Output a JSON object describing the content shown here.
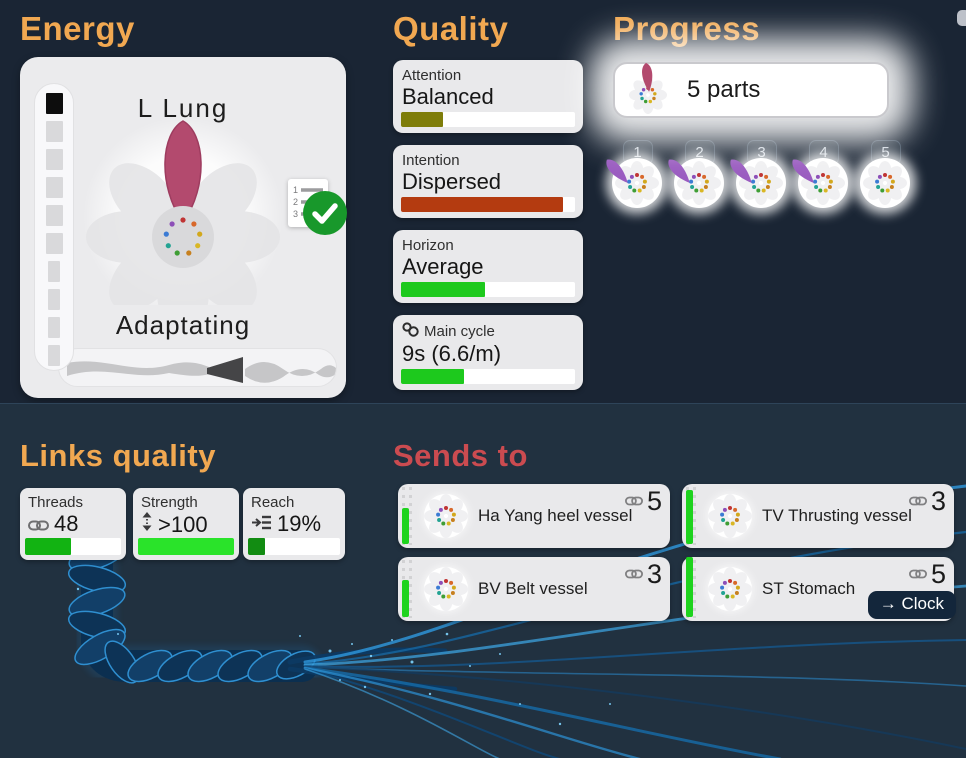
{
  "colors": {
    "bg_top": "#1a2534",
    "bg_bottom": "#213140",
    "accent_orange": "#f1a851",
    "accent_red": "#cb4b50",
    "card_gray": "#e9e9eb",
    "petal_pink": "#b34a6e",
    "petal_purple": "#9a5cc0",
    "bar_green": "#1dc91d"
  },
  "icons": {
    "threads": "chain-link-icon",
    "strength": "double-arrow-vertical-icon",
    "reach": "indent-lines-icon",
    "main_cycle": "loop-cycle-icon",
    "checklist": "numbered-list-icon",
    "done": "green-checkmark-icon",
    "links": "chain-link-icon",
    "clock_arrow": "arrow-right-icon"
  },
  "energy": {
    "title": "Energy",
    "organ": "L Lung",
    "state": "Adaptating",
    "gauge": {
      "segments": 10,
      "active_segment": 1
    }
  },
  "quality": {
    "title": "Quality",
    "stats": [
      {
        "label": "Attention",
        "value": "Balanced",
        "pct": 24,
        "color": "#7e7d0a"
      },
      {
        "label": "Intention",
        "value": "Dispersed",
        "pct": 93,
        "color": "#b43b10"
      },
      {
        "label": "Horizon",
        "value": "Average",
        "pct": 48,
        "color": "#1dc91d"
      },
      {
        "label": "Main cycle",
        "value": "9s (6.6/m)",
        "pct": 36,
        "color": "#1dc91d"
      }
    ]
  },
  "progress": {
    "title": "Progress",
    "summary": "5 parts",
    "parts": [
      {
        "label": "1",
        "state": "done"
      },
      {
        "label": "2",
        "state": "done"
      },
      {
        "label": "3",
        "state": "done"
      },
      {
        "label": "4",
        "state": "done"
      },
      {
        "label": "5",
        "state": "pending"
      }
    ]
  },
  "links_quality": {
    "title": "Links quality",
    "stats": [
      {
        "label": "Threads",
        "value": "48",
        "pct": 48,
        "color": "#12b312"
      },
      {
        "label": "Strength",
        "value": ">100",
        "pct": 100,
        "color": "#2ae32a"
      },
      {
        "label": "Reach",
        "value": "19%",
        "pct": 19,
        "color": "#128c12"
      }
    ]
  },
  "sends_to": {
    "title": "Sends to",
    "cards": [
      {
        "name": "Ha Yang heel vessel",
        "links": "5",
        "level_pct": 56
      },
      {
        "name": "TV Thrusting vessel",
        "links": "3",
        "level_pct": 84
      },
      {
        "name": "BV Belt vessel",
        "links": "3",
        "level_pct": 58
      },
      {
        "name": "ST Stomach",
        "links": "5",
        "level_pct": 94,
        "action": "→ Clock"
      }
    ]
  }
}
